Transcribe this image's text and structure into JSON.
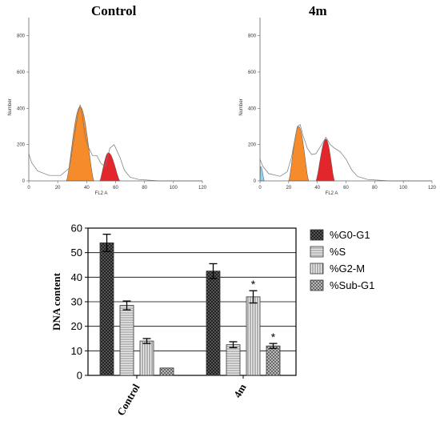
{
  "colors": {
    "g0g1_peak": "#f58b2b",
    "g2m_peak": "#e3262c",
    "subg1_peak": "#8fd3f0",
    "outline": "#777777",
    "bar_g0g1": "#444444",
    "bar_s": "#cfcfcf",
    "bar_g2m": "#d8d8d8",
    "bar_subg1": "#9a9a9a"
  },
  "chart_data": [
    {
      "type": "area",
      "title": "Control",
      "xlabel": "FL2 A",
      "ylabel": "Number",
      "xlim": [
        0,
        120
      ],
      "ylim": [
        0,
        900
      ],
      "xticks": [
        "0",
        "20",
        "40",
        "60",
        "80",
        "100",
        "120"
      ],
      "yticks": [
        "0",
        "200",
        "400",
        "600",
        "800"
      ],
      "profile": [
        [
          0,
          150
        ],
        [
          2,
          100
        ],
        [
          6,
          55
        ],
        [
          14,
          30
        ],
        [
          22,
          30
        ],
        [
          28,
          70
        ],
        [
          31,
          220
        ],
        [
          34,
          370
        ],
        [
          35.5,
          420
        ],
        [
          37,
          360
        ],
        [
          39,
          240
        ],
        [
          41,
          190
        ],
        [
          44,
          140
        ],
        [
          47,
          140
        ],
        [
          50,
          95
        ],
        [
          53,
          80
        ],
        [
          56,
          180
        ],
        [
          59,
          200
        ],
        [
          63,
          130
        ],
        [
          66,
          60
        ],
        [
          70,
          20
        ],
        [
          76,
          8
        ],
        [
          90,
          0
        ],
        [
          120,
          0
        ]
      ],
      "peaks": [
        {
          "name": "G0-G1",
          "x": [
            26,
            45
          ],
          "center": 35.5,
          "height": 410
        },
        {
          "name": "G2-M",
          "x": [
            49,
            63
          ],
          "center": 55,
          "height": 155
        }
      ]
    },
    {
      "type": "area",
      "title": "4m",
      "xlabel": "FL2 A",
      "ylabel": "Number",
      "xlim": [
        0,
        120
      ],
      "ylim": [
        0,
        900
      ],
      "xticks": [
        "0",
        "20",
        "40",
        "60",
        "80",
        "100",
        "120"
      ],
      "yticks": [
        "0",
        "200",
        "400",
        "600",
        "800"
      ],
      "profile": [
        [
          0,
          120
        ],
        [
          2,
          80
        ],
        [
          6,
          40
        ],
        [
          14,
          25
        ],
        [
          19,
          50
        ],
        [
          22,
          130
        ],
        [
          26,
          300
        ],
        [
          28,
          310
        ],
        [
          30,
          250
        ],
        [
          33,
          180
        ],
        [
          36,
          145
        ],
        [
          39,
          150
        ],
        [
          43,
          200
        ],
        [
          46,
          240
        ],
        [
          49,
          200
        ],
        [
          52,
          180
        ],
        [
          56,
          160
        ],
        [
          60,
          120
        ],
        [
          64,
          60
        ],
        [
          68,
          25
        ],
        [
          75,
          8
        ],
        [
          90,
          0
        ],
        [
          120,
          0
        ]
      ],
      "peaks": [
        {
          "name": "Sub-G1",
          "x": [
            0,
            3
          ],
          "center": 0.5,
          "height": 80
        },
        {
          "name": "G0-G1",
          "x": [
            20,
            34
          ],
          "center": 27,
          "height": 300
        },
        {
          "name": "G2-M",
          "x": [
            39,
            52
          ],
          "center": 46,
          "height": 230
        }
      ]
    },
    {
      "type": "bar",
      "title": "",
      "xlabel": "",
      "ylabel": "DNA content",
      "ylim": [
        0,
        60
      ],
      "yticks": [
        "0",
        "10",
        "20",
        "30",
        "40",
        "50",
        "60"
      ],
      "grid": true,
      "legend_position": "right",
      "categories": [
        "Control",
        "4m"
      ],
      "series": [
        {
          "name": "%G0-G1",
          "values": [
            54,
            42.5
          ],
          "errors": [
            3.5,
            3
          ],
          "significant": [
            false,
            false
          ],
          "color_key": "bar_g0g1",
          "pattern": "dots-dark"
        },
        {
          "name": "%S",
          "values": [
            28.5,
            12.5
          ],
          "errors": [
            1.8,
            1.2
          ],
          "significant": [
            false,
            false
          ],
          "color_key": "bar_s",
          "pattern": "horizontal"
        },
        {
          "name": "%G2-M",
          "values": [
            14,
            32
          ],
          "errors": [
            1,
            2.5
          ],
          "significant": [
            false,
            true
          ],
          "color_key": "bar_g2m",
          "pattern": "vertical"
        },
        {
          "name": "%Sub-G1",
          "values": [
            3,
            12
          ],
          "errors": [
            0,
            1
          ],
          "significant": [
            false,
            true
          ],
          "color_key": "bar_subg1",
          "pattern": "crosshatch"
        }
      ],
      "significance_mark": "*"
    }
  ]
}
